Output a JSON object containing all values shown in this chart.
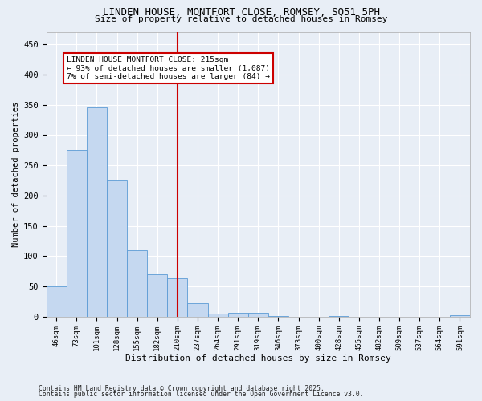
{
  "title1": "LINDEN HOUSE, MONTFORT CLOSE, ROMSEY, SO51 5PH",
  "title2": "Size of property relative to detached houses in Romsey",
  "xlabel": "Distribution of detached houses by size in Romsey",
  "ylabel": "Number of detached properties",
  "categories": [
    "46sqm",
    "73sqm",
    "101sqm",
    "128sqm",
    "155sqm",
    "182sqm",
    "210sqm",
    "237sqm",
    "264sqm",
    "291sqm",
    "319sqm",
    "346sqm",
    "373sqm",
    "400sqm",
    "428sqm",
    "455sqm",
    "482sqm",
    "509sqm",
    "537sqm",
    "564sqm",
    "591sqm"
  ],
  "values": [
    50,
    275,
    345,
    225,
    110,
    70,
    63,
    22,
    5,
    7,
    7,
    1,
    0,
    0,
    1,
    0,
    0,
    0,
    0,
    0,
    2
  ],
  "bar_color": "#c5d8f0",
  "bar_edge_color": "#5b9bd5",
  "vline_x": 6.0,
  "annotation_line1": "LINDEN HOUSE MONTFORT CLOSE: 215sqm",
  "annotation_line2": "← 93% of detached houses are smaller (1,087)",
  "annotation_line3": "7% of semi-detached houses are larger (84) →",
  "annotation_box_color": "#ffffff",
  "annotation_box_edge": "#cc0000",
  "vline_color": "#cc0000",
  "ylim": [
    0,
    470
  ],
  "yticks": [
    0,
    50,
    100,
    150,
    200,
    250,
    300,
    350,
    400,
    450
  ],
  "footnote1": "Contains HM Land Registry data © Crown copyright and database right 2025.",
  "footnote2": "Contains public sector information licensed under the Open Government Licence v3.0.",
  "background_color": "#e8eef6",
  "grid_color": "#ffffff"
}
